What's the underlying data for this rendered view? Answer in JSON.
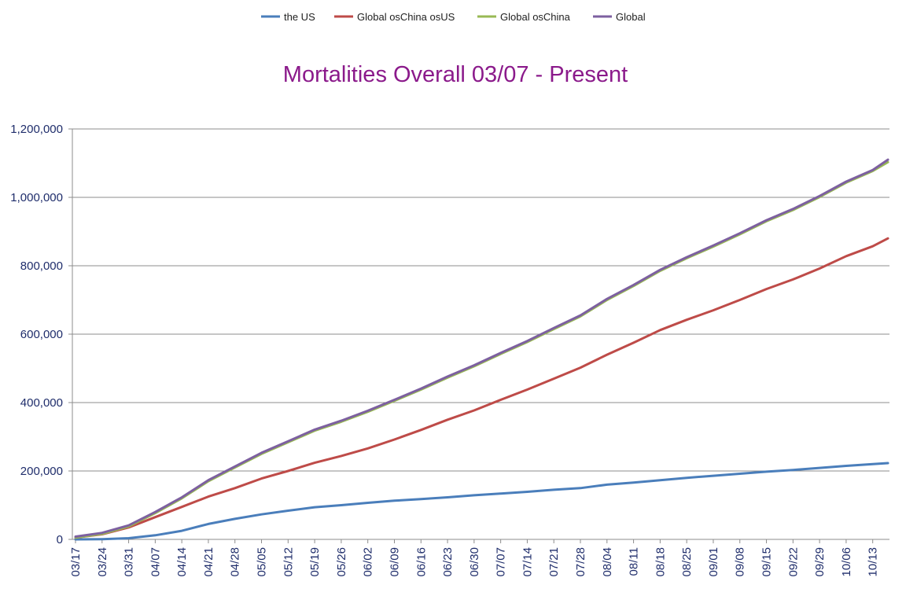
{
  "colors": {
    "the_us": "#4a7ebb",
    "global_os_china_os_us": "#be4b48",
    "global_os_china": "#98b954",
    "global": "#7d60a0",
    "title": "#8b1a8b",
    "ticks": "#1f2d6b",
    "grid": "#8c8c8c"
  },
  "chart_data": {
    "type": "line",
    "title": "Mortalities Overall 03/07 - Present",
    "xlabel": "",
    "ylabel": "",
    "ylim": [
      0,
      1200000
    ],
    "grid": "horizontal",
    "legend_placement": "top",
    "y_ticks": [
      "0",
      "200,000",
      "400,000",
      "600,000",
      "800,000",
      "1,000,000",
      "1,200,000"
    ],
    "x_ticks": [
      "03/17",
      "03/24",
      "03/31",
      "04/07",
      "04/14",
      "04/21",
      "04/28",
      "05/05",
      "05/12",
      "05/19",
      "05/26",
      "06/02",
      "06/09",
      "06/16",
      "06/23",
      "06/30",
      "07/07",
      "07/14",
      "07/21",
      "07/28",
      "08/04",
      "08/11",
      "08/18",
      "08/25",
      "09/01",
      "09/08",
      "09/15",
      "09/22",
      "09/29",
      "10/06",
      "10/13"
    ],
    "x": [
      "03/17",
      "03/24",
      "03/31",
      "04/07",
      "04/14",
      "04/21",
      "04/28",
      "05/05",
      "05/12",
      "05/19",
      "05/26",
      "06/02",
      "06/09",
      "06/16",
      "06/23",
      "06/30",
      "07/07",
      "07/14",
      "07/21",
      "07/28",
      "08/04",
      "08/11",
      "08/18",
      "08/25",
      "09/01",
      "09/08",
      "09/15",
      "09/22",
      "09/29",
      "10/06",
      "10/13",
      "10/17"
    ],
    "series": [
      {
        "name": "the US",
        "color_key": "the_us",
        "values": [
          100,
          700,
          3500,
          12000,
          25000,
          45000,
          60000,
          73000,
          84000,
          94000,
          100000,
          107000,
          113000,
          118000,
          123000,
          129000,
          134000,
          139000,
          145000,
          150000,
          160000,
          166000,
          173000,
          180000,
          186000,
          192000,
          198000,
          203000,
          209000,
          215000,
          220000,
          223000
        ]
      },
      {
        "name": "Global osChina osUS",
        "color_key": "global_os_china_os_us",
        "values": [
          5000,
          15000,
          35000,
          65000,
          95000,
          125000,
          150000,
          178000,
          200000,
          224000,
          244000,
          266000,
          292000,
          320000,
          350000,
          377000,
          408000,
          438000,
          470000,
          502000,
          540000,
          575000,
          612000,
          642000,
          670000,
          700000,
          732000,
          760000,
          792000,
          828000,
          857000,
          880000
        ]
      },
      {
        "name": "Global osChina",
        "color_key": "global_os_china",
        "values": [
          5000,
          16000,
          38000,
          77000,
          120000,
          170000,
          210000,
          250000,
          284000,
          318000,
          344000,
          373000,
          405000,
          438000,
          473000,
          506000,
          542000,
          577000,
          615000,
          652000,
          700000,
          741000,
          785000,
          822000,
          856000,
          892000,
          930000,
          963000,
          1001000,
          1043000,
          1077000,
          1103000
        ]
      },
      {
        "name": "Global",
        "color_key": "global",
        "values": [
          8000,
          19000,
          41000,
          80000,
          123000,
          173000,
          213000,
          253000,
          287000,
          321000,
          347000,
          376000,
          408000,
          441000,
          476000,
          509000,
          545000,
          580000,
          618000,
          655000,
          703000,
          744000,
          788000,
          825000,
          859000,
          895000,
          933000,
          966000,
          1004000,
          1046000,
          1080000,
          1110000
        ]
      }
    ]
  }
}
